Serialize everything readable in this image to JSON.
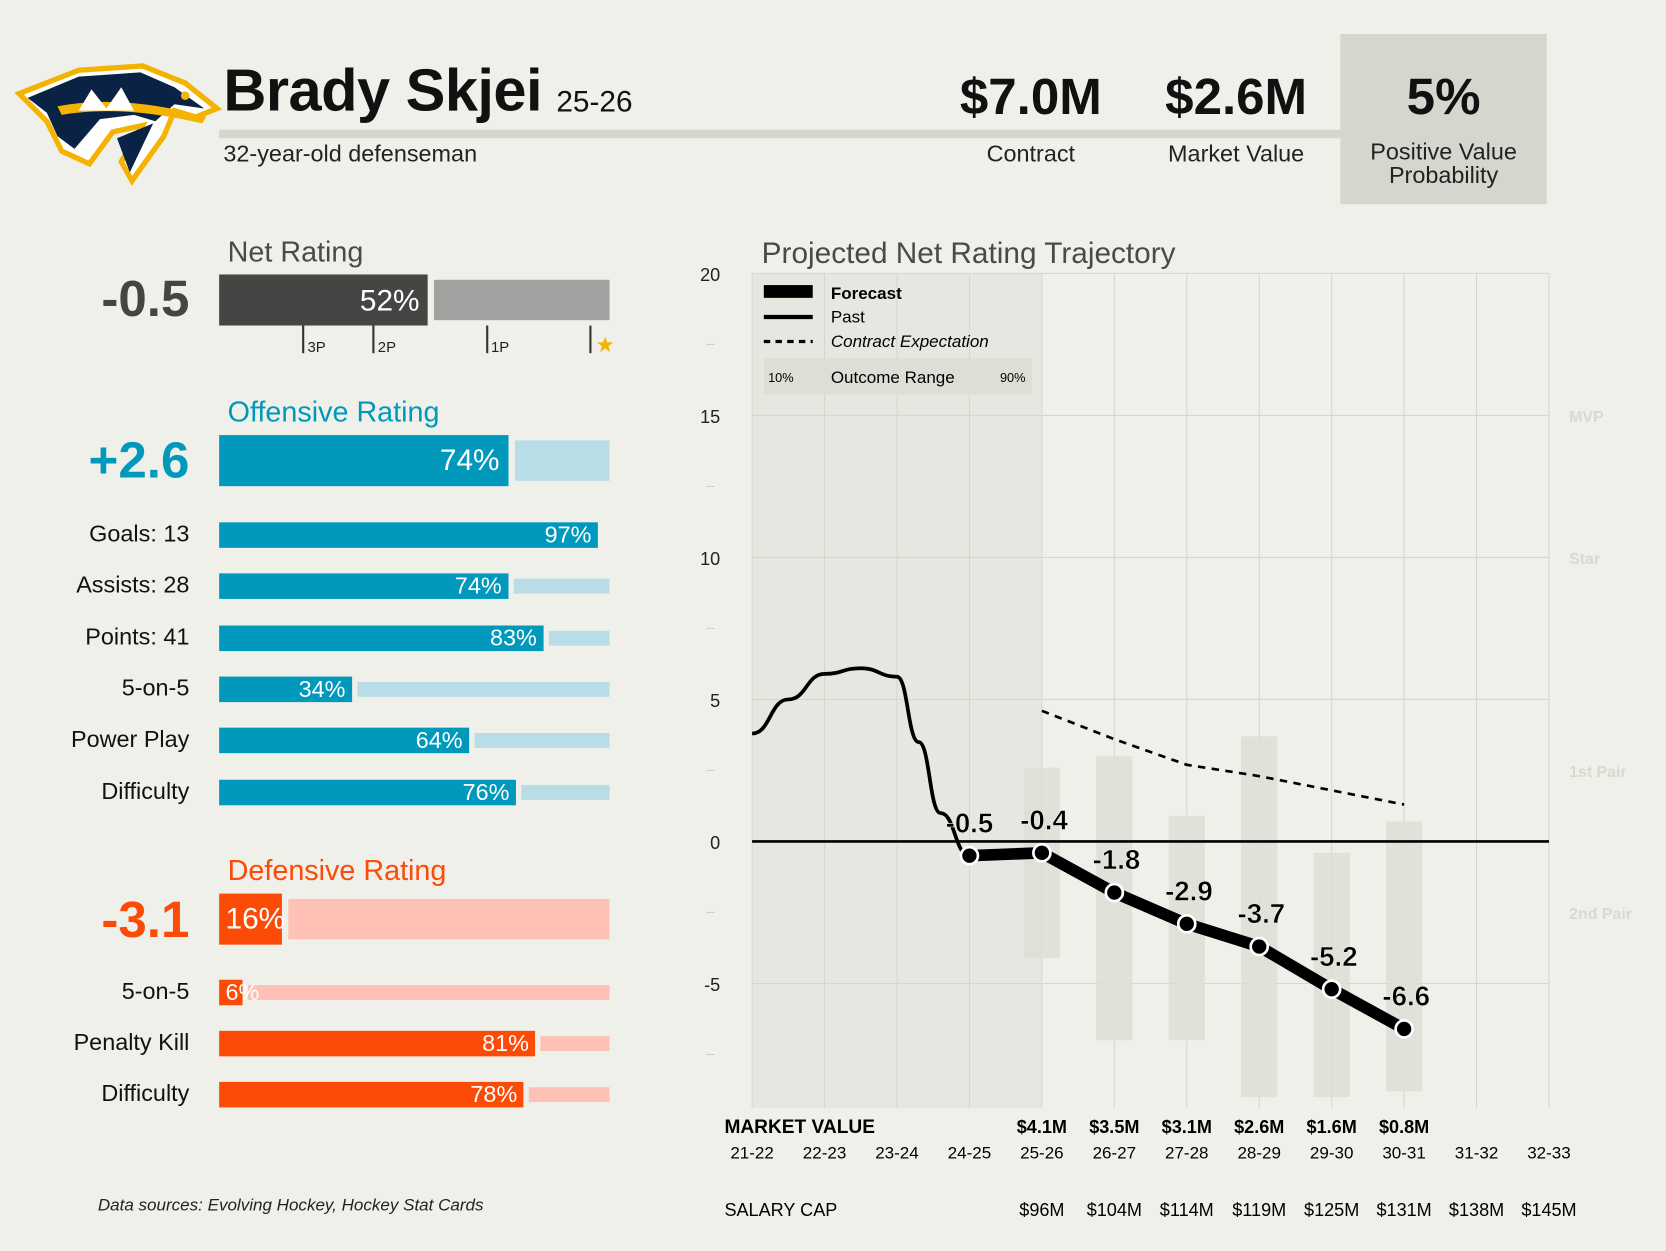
{
  "player": {
    "name": "Brady Skjei",
    "season": "25-26",
    "description": "32-year-old defenseman",
    "team_logo": "nashville-predators-logo"
  },
  "header_stats": [
    {
      "value": "$7.0M",
      "label": "Contract"
    },
    {
      "value": "$2.6M",
      "label": "Market Value"
    },
    {
      "value": "5%",
      "label_line1": "Positive Value",
      "label_line2": "Probability"
    }
  ],
  "net_rating": {
    "title": "Net Rating",
    "value": "-0.5",
    "percentile": 52,
    "percentile_label": "52%",
    "ticks": [
      {
        "label": "3P",
        "position": 0.24
      },
      {
        "label": "2P",
        "position": 0.42
      },
      {
        "label": "1P",
        "position": 0.71
      },
      {
        "label": "star-icon",
        "position": 0.975
      }
    ],
    "colors": {
      "fill": "#474543",
      "track": "#a3a19f"
    }
  },
  "offensive": {
    "title": "Offensive Rating",
    "value": "+2.6",
    "percentile": 74,
    "percentile_label": "74%",
    "color": "#0099bb",
    "track_color": "#b9dde6",
    "items": [
      {
        "label": "Goals: 13",
        "percentile": 97,
        "pct_label": "97%"
      },
      {
        "label": "Assists: 28",
        "percentile": 74,
        "pct_label": "74%"
      },
      {
        "label": "Points: 41",
        "percentile": 83,
        "pct_label": "83%"
      },
      {
        "label": "5-on-5",
        "percentile": 34,
        "pct_label": "34%"
      },
      {
        "label": "Power Play",
        "percentile": 64,
        "pct_label": "64%"
      },
      {
        "label": "Difficulty",
        "percentile": 76,
        "pct_label": "76%"
      }
    ]
  },
  "defensive": {
    "title": "Defensive Rating",
    "value": "-3.1",
    "percentile": 16,
    "percentile_label": "16%",
    "color": "#fc4a07",
    "track_color": "#ffc1b5",
    "items": [
      {
        "label": "5-on-5",
        "percentile": 6,
        "pct_label": "6%"
      },
      {
        "label": "Penalty Kill",
        "percentile": 81,
        "pct_label": "81%"
      },
      {
        "label": "Difficulty",
        "percentile": 78,
        "pct_label": "78%"
      }
    ]
  },
  "footer": {
    "sources": "Data sources: Evolving Hockey, Hockey Stat Cards"
  },
  "chart_data": {
    "type": "line",
    "title": "Projected Net Rating Trajectory",
    "xlabel": "",
    "ylabel": "",
    "ylim": [
      -9,
      20
    ],
    "yticks": [
      -5,
      0,
      5,
      10,
      15,
      20
    ],
    "grid": true,
    "legend_position": "top-left",
    "legend": {
      "forecast": "Forecast",
      "past": "Past",
      "contract": "Contract Expectation",
      "range": "Outcome Range",
      "range_low": "10%",
      "range_high": "90%"
    },
    "tier_labels": [
      {
        "label": "MVP",
        "y": 15
      },
      {
        "label": "Star",
        "y": 10
      },
      {
        "label": "1st Pair",
        "y": 2.5
      },
      {
        "label": "2nd Pair",
        "y": -2.5
      }
    ],
    "x": [
      "21-22",
      "22-23",
      "23-24",
      "24-25",
      "25-26",
      "26-27",
      "27-28",
      "28-29",
      "29-30",
      "30-31",
      "31-32",
      "32-33"
    ],
    "past": {
      "x": [
        0,
        0.5,
        1,
        1.5,
        2,
        2.3,
        2.6,
        3
      ],
      "y": [
        3.8,
        5.0,
        5.9,
        6.1,
        5.8,
        3.5,
        1.0,
        -0.5
      ]
    },
    "forecast": {
      "x": [
        3,
        4,
        5,
        6,
        7,
        8,
        9
      ],
      "y": [
        -0.5,
        -0.4,
        -1.8,
        -2.9,
        -3.7,
        -5.2,
        -6.6
      ],
      "labels": [
        "-0.5",
        "-0.4",
        "-1.8",
        "-2.9",
        "-3.7",
        "-5.2",
        "-6.6"
      ]
    },
    "contract_expectation": {
      "x": [
        4,
        5,
        6,
        7,
        8,
        9
      ],
      "y": [
        4.6,
        3.6,
        2.7,
        2.3,
        1.8,
        1.3
      ]
    },
    "outcome_range": [
      {
        "x": 4,
        "low": -4.1,
        "high": 2.6
      },
      {
        "x": 5,
        "low": -7.0,
        "high": 3.0
      },
      {
        "x": 6,
        "low": -7.0,
        "high": 0.9
      },
      {
        "x": 7,
        "low": -9.0,
        "high": 3.7
      },
      {
        "x": 8,
        "low": -9.0,
        "high": -0.4
      },
      {
        "x": 9,
        "low": -8.8,
        "high": 0.7
      }
    ],
    "market_value_label": "MARKET VALUE",
    "market_value": [
      "",
      "",
      "",
      "",
      "$4.1M",
      "$3.5M",
      "$3.1M",
      "$2.6M",
      "$1.6M",
      "$0.8M",
      "",
      ""
    ],
    "salary_cap_label": "SALARY CAP",
    "salary_cap": [
      "",
      "",
      "",
      "",
      "$96M",
      "$104M",
      "$114M",
      "$119M",
      "$125M",
      "$131M",
      "$138M",
      "$145M"
    ]
  }
}
